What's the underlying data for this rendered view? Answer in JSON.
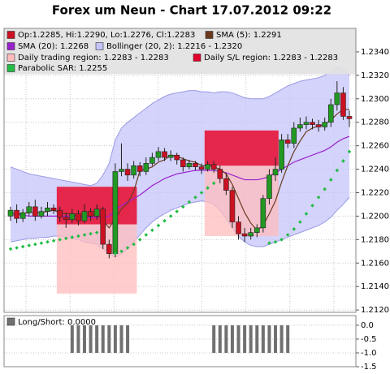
{
  "chart_data": [
    {
      "type": "candlestick",
      "title": "Forex um Neun - Chart 17.07.2012 09:22",
      "ylim": [
        1.2118,
        1.236
      ],
      "yticks": [
        {
          "value": 1.212,
          "label": "1.2120"
        },
        {
          "value": 1.214,
          "label": "1.2140"
        },
        {
          "value": 1.216,
          "label": "1.2160"
        },
        {
          "value": 1.218,
          "label": "1.2180"
        },
        {
          "value": 1.22,
          "label": "1.2200"
        },
        {
          "value": 1.222,
          "label": "1.2220"
        },
        {
          "value": 1.224,
          "label": "1.2240"
        },
        {
          "value": 1.226,
          "label": "1.2260"
        },
        {
          "value": 1.228,
          "label": "1.2280"
        },
        {
          "value": 1.23,
          "label": "1.2300"
        },
        {
          "value": 1.232,
          "label": "1.2320"
        },
        {
          "value": 1.234,
          "label": "1.2340"
        }
      ],
      "grid": true,
      "candles": {
        "name": "Op:1.2285, Hi:1.2290, Lo:1.2276, Cl:1.2283",
        "color": "#cc1122",
        "up_color": "#229922",
        "down_color": "#cc1122",
        "open": [
          1.22,
          1.2205,
          1.2198,
          1.2203,
          1.2208,
          1.22,
          1.2204,
          1.2207,
          1.2205,
          1.2199,
          1.2197,
          1.2202,
          1.2196,
          1.2204,
          1.22,
          1.2206,
          1.2176,
          1.2168,
          1.2238,
          1.224,
          1.2235,
          1.2243,
          1.2238,
          1.2245,
          1.225,
          1.2255,
          1.225,
          1.2252,
          1.2248,
          1.2242,
          1.2245,
          1.2242,
          1.224,
          1.2244,
          1.224,
          1.2232,
          1.2222,
          1.2195,
          1.2185,
          1.2183,
          1.2186,
          1.219,
          1.2215,
          1.2235,
          1.224,
          1.2265,
          1.2262,
          1.2275,
          1.2278,
          1.228,
          1.2278,
          1.2276,
          1.228,
          1.2295,
          1.2305,
          1.2285
        ],
        "high": [
          1.2208,
          1.221,
          1.2206,
          1.2212,
          1.2214,
          1.2208,
          1.2212,
          1.221,
          1.2208,
          1.2203,
          1.2206,
          1.2205,
          1.221,
          1.2207,
          1.221,
          1.2208,
          1.218,
          1.2245,
          1.2262,
          1.2245,
          1.2247,
          1.2246,
          1.225,
          1.2254,
          1.2259,
          1.2258,
          1.2256,
          1.2254,
          1.225,
          1.2248,
          1.2247,
          1.2245,
          1.2247,
          1.2247,
          1.2243,
          1.2236,
          1.2225,
          1.22,
          1.219,
          1.219,
          1.2193,
          1.2218,
          1.224,
          1.225,
          1.227,
          1.227,
          1.228,
          1.2284,
          1.2285,
          1.2283,
          1.2282,
          1.2284,
          1.23,
          1.2315,
          1.231,
          1.229
        ],
        "low": [
          1.2196,
          1.2194,
          1.2195,
          1.22,
          1.2196,
          1.2198,
          1.22,
          1.2202,
          1.2195,
          1.219,
          1.2194,
          1.2192,
          1.2194,
          1.2196,
          1.2197,
          1.2172,
          1.2164,
          1.2165,
          1.2234,
          1.223,
          1.2232,
          1.2234,
          1.2235,
          1.2243,
          1.2247,
          1.2247,
          1.2247,
          1.2244,
          1.2238,
          1.224,
          1.2239,
          1.2236,
          1.2238,
          1.2237,
          1.2228,
          1.2218,
          1.219,
          1.218,
          1.2178,
          1.218,
          1.2182,
          1.2186,
          1.221,
          1.223,
          1.2237,
          1.2258,
          1.2258,
          1.2272,
          1.2274,
          1.2274,
          1.2272,
          1.2273,
          1.2276,
          1.229,
          1.2282,
          1.2276
        ],
        "close": [
          1.2205,
          1.2198,
          1.2203,
          1.2208,
          1.22,
          1.2204,
          1.2207,
          1.2205,
          1.2199,
          1.2197,
          1.2202,
          1.2196,
          1.2204,
          1.22,
          1.2206,
          1.2176,
          1.2168,
          1.2238,
          1.224,
          1.2235,
          1.2243,
          1.2238,
          1.2245,
          1.225,
          1.2255,
          1.225,
          1.2252,
          1.2248,
          1.2242,
          1.2245,
          1.2242,
          1.224,
          1.2244,
          1.224,
          1.2232,
          1.2222,
          1.2195,
          1.2185,
          1.2183,
          1.2186,
          1.219,
          1.2215,
          1.2235,
          1.224,
          1.2265,
          1.2262,
          1.2275,
          1.2278,
          1.228,
          1.2278,
          1.2276,
          1.228,
          1.2295,
          1.2305,
          1.2285,
          1.2283
        ]
      },
      "lines": [
        {
          "name": "SMA (5): 1.2291",
          "color": "#6b3a1e",
          "values": [
            1.2203,
            1.2202,
            1.2202,
            1.2203,
            1.2203,
            1.2203,
            1.2204,
            1.2205,
            1.2203,
            1.2202,
            1.2202,
            1.22,
            1.22,
            1.22,
            1.2202,
            1.2196,
            1.219,
            1.2198,
            1.2206,
            1.2211,
            1.2221,
            1.2239,
            1.224,
            1.2242,
            1.2246,
            1.2248,
            1.2252,
            1.2251,
            1.2249,
            1.2247,
            1.2246,
            1.2243,
            1.2243,
            1.2242,
            1.224,
            1.2236,
            1.2227,
            1.2215,
            1.2203,
            1.2194,
            1.2188,
            1.2192,
            1.2202,
            1.2213,
            1.2229,
            1.2243,
            1.2255,
            1.2264,
            1.2272,
            1.2275,
            1.2277,
            1.2278,
            1.2282,
            1.2287,
            1.2291,
            1.2291
          ]
        },
        {
          "name": "SMA (20): 1.2268",
          "color": "#9922cc",
          "values": [
            1.2201,
            1.2201,
            1.2201,
            1.22,
            1.22,
            1.22,
            1.22,
            1.22,
            1.22,
            1.22,
            1.22,
            1.2199,
            1.2199,
            1.2199,
            1.2199,
            1.2199,
            1.22,
            1.2205,
            1.2209,
            1.2212,
            1.2215,
            1.2218,
            1.2222,
            1.2226,
            1.2229,
            1.2232,
            1.2234,
            1.2236,
            1.2237,
            1.2238,
            1.2239,
            1.2239,
            1.2239,
            1.2239,
            1.2238,
            1.2237,
            1.2235,
            1.2233,
            1.2231,
            1.2231,
            1.2231,
            1.2232,
            1.2234,
            1.2237,
            1.224,
            1.2243,
            1.2246,
            1.2248,
            1.225,
            1.2252,
            1.2254,
            1.2256,
            1.2259,
            1.2263,
            1.2266,
            1.2268
          ]
        }
      ],
      "band": {
        "name": "Bollinger (20, 2): 1.2216 - 1.2320",
        "color": "#c4c4fa",
        "edge_color": "#9a9ae6",
        "upper": [
          1.2242,
          1.224,
          1.2238,
          1.2236,
          1.2235,
          1.2234,
          1.2233,
          1.2232,
          1.2231,
          1.223,
          1.2229,
          1.2228,
          1.2227,
          1.2226,
          1.2228,
          1.2235,
          1.2245,
          1.2265,
          1.2275,
          1.228,
          1.2284,
          1.2288,
          1.2292,
          1.2296,
          1.2299,
          1.2302,
          1.2304,
          1.2305,
          1.2306,
          1.2307,
          1.2307,
          1.2306,
          1.2306,
          1.2305,
          1.2306,
          1.2306,
          1.2305,
          1.2303,
          1.2301,
          1.23,
          1.23,
          1.23,
          1.2302,
          1.2305,
          1.2308,
          1.2311,
          1.2313,
          1.2315,
          1.2316,
          1.2317,
          1.2318,
          1.232,
          1.2323,
          1.2327,
          1.2325,
          1.232
        ],
        "lower": [
          1.2178,
          1.2179,
          1.218,
          1.2181,
          1.2181,
          1.2182,
          1.2182,
          1.2183,
          1.2183,
          1.2182,
          1.2181,
          1.218,
          1.2178,
          1.2177,
          1.2176,
          1.2172,
          1.2168,
          1.2165,
          1.2168,
          1.2172,
          1.2178,
          1.2184,
          1.219,
          1.2195,
          1.2199,
          1.2202,
          1.2205,
          1.2207,
          1.2209,
          1.2211,
          1.2212,
          1.2213,
          1.2212,
          1.221,
          1.2205,
          1.2198,
          1.219,
          1.2183,
          1.2178,
          1.2175,
          1.2174,
          1.2174,
          1.2176,
          1.2178,
          1.218,
          1.2182,
          1.2184,
          1.2186,
          1.2188,
          1.219,
          1.2192,
          1.2195,
          1.2199,
          1.2205,
          1.221,
          1.2216
        ]
      },
      "regions": [
        {
          "name": "Daily trading region: 1.2283 - 1.2283",
          "color": "#ffbcbc",
          "areas": [
            {
              "start": 8,
              "end": 20,
              "low": 1.2134,
              "high": 1.2225
            },
            {
              "start": 32,
              "end": 43,
              "low": 1.2183,
              "high": 1.2273
            }
          ]
        },
        {
          "name": "Daily S/L region: 1.2283 - 1.2283",
          "color": "#e0002a",
          "areas": [
            {
              "start": 8,
              "end": 20,
              "low": 1.2193,
              "high": 1.2225
            },
            {
              "start": 32,
              "end": 43,
              "low": 1.2243,
              "high": 1.2273
            }
          ]
        }
      ],
      "sar": {
        "name": "Parabolic SAR: 1.2255",
        "color": "#22bb44",
        "values": [
          1.2172,
          1.2173,
          1.2174,
          1.2175,
          1.2176,
          1.2177,
          1.2178,
          1.2179,
          1.218,
          1.2181,
          1.2182,
          1.2183,
          1.2184,
          1.2185,
          1.2186,
          null,
          null,
          1.2168,
          1.217,
          1.2173,
          1.2176,
          1.218,
          1.2184,
          1.2188,
          1.2192,
          1.2196,
          1.22,
          1.2204,
          1.2208,
          1.2212,
          1.2216,
          1.222,
          1.2224,
          1.2228,
          null,
          null,
          null,
          null,
          null,
          null,
          null,
          null,
          1.2177,
          1.2178,
          1.218,
          1.2184,
          1.2189,
          1.2195,
          1.2202,
          1.2209,
          1.2216,
          1.2223,
          1.2231,
          1.2239,
          1.2247,
          1.2255
        ]
      }
    },
    {
      "type": "bar",
      "ylim": [
        -1.5,
        0.35
      ],
      "yticks": [
        {
          "value": 0,
          "label": "0.0"
        },
        -0.5,
        {
          "value": -1,
          "label": "-1.0"
        },
        -1.5
      ],
      "grid": true,
      "series": [
        {
          "name": "Long/Short: 0.0000",
          "color": "#707070",
          "values": [
            0,
            0,
            0,
            0,
            0,
            0,
            0,
            0,
            0,
            0,
            -1,
            -1,
            -1,
            -1,
            -1,
            -1,
            -1,
            -1,
            -1,
            -1,
            0,
            0,
            0,
            0,
            0,
            0,
            0,
            0,
            0,
            0,
            0,
            0,
            0,
            -1,
            -1,
            -1,
            -1,
            -1,
            -1,
            -1,
            -1,
            -1,
            -1,
            -1,
            -1,
            -1,
            0,
            0,
            0,
            0,
            0,
            0,
            0,
            0,
            0,
            0
          ]
        }
      ]
    }
  ]
}
